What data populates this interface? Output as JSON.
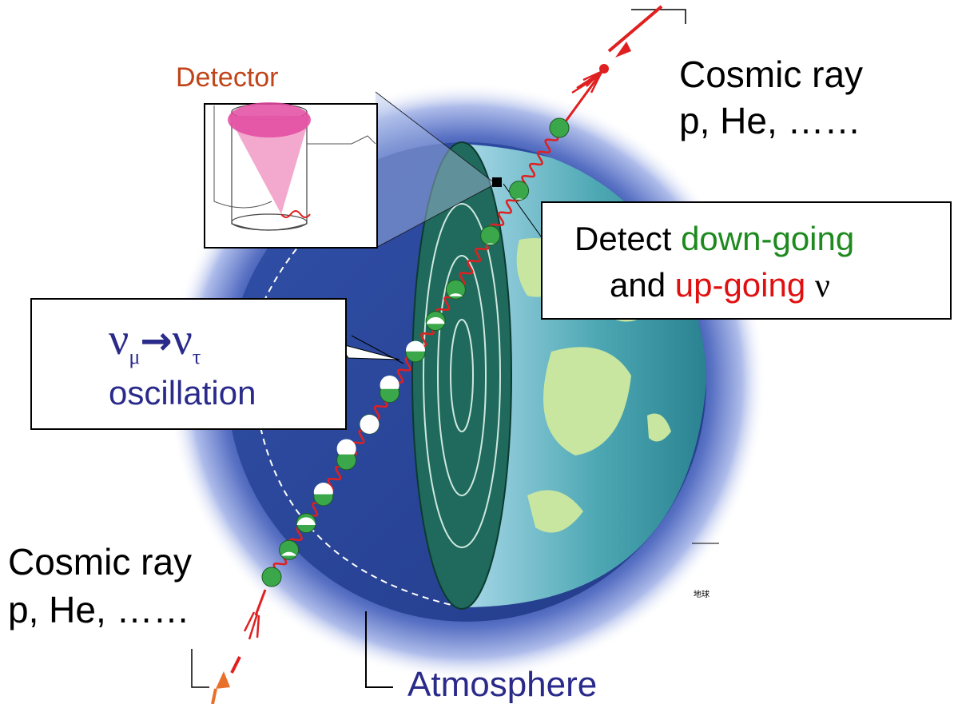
{
  "labels": {
    "detector": "Detector",
    "cosmic_ray_top_line1": "Cosmic ray",
    "cosmic_ray_top_line2": "p, He, ……",
    "cosmic_ray_bottom_line1": "Cosmic ray",
    "cosmic_ray_bottom_line2": "p, He, ……",
    "atmosphere": "Atmosphere",
    "small_mark": "地球"
  },
  "detect_box": {
    "word_detect": "Detect",
    "word_down": "down-going",
    "word_and": "and",
    "word_up": "up-going",
    "word_nu": "ν"
  },
  "oscillation_box": {
    "nu": "ν",
    "mu": "μ",
    "arrow": "→",
    "tau": "τ",
    "word": "oscillation"
  },
  "colors": {
    "detector_label": "#c0441a",
    "down_going": "#1e8a1e",
    "up_going": "#e01010",
    "atmosphere_label": "#2a2a8a",
    "oscillation_text": "#2a2a8a",
    "neutrino_green": "#3aa84a",
    "cosmic_ray_red": "#e02020",
    "earth_ocean": "#2c4a9c",
    "earth_land": "#c8e6a0",
    "earth_core": "#1f6a5c"
  },
  "icons": {
    "neutrino": "neutrino-ball-icon",
    "detector": "water-cherenkov-tank-icon",
    "cosmic_ray": "cosmic-ray-arrow-icon"
  }
}
